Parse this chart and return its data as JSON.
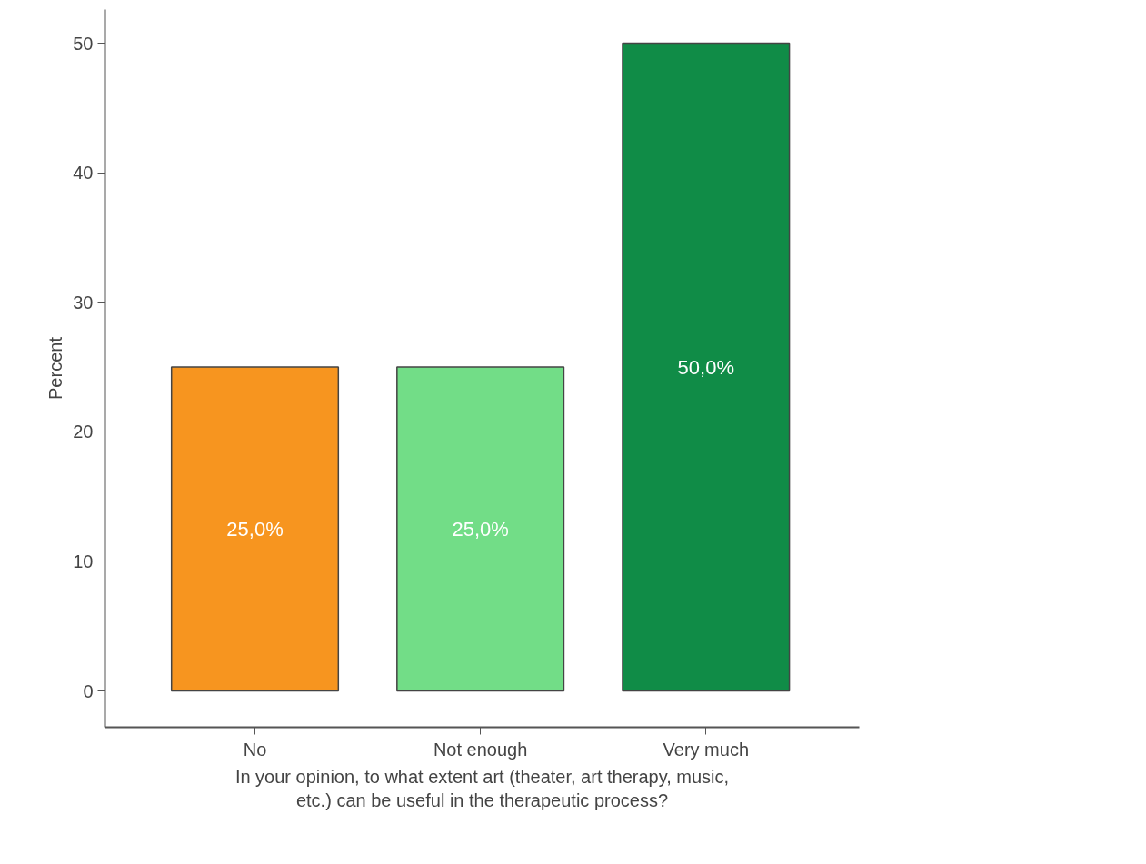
{
  "chart_data": {
    "type": "bar",
    "xlabel": "In your opinion, to what extent art (theater, art therapy, music, etc.) can be useful in the therapeutic process?",
    "ylabel": "Percent",
    "categories": [
      "No",
      "Not enough",
      "Very much"
    ],
    "values": [
      25,
      25,
      50
    ],
    "colors": [
      "#f7951f",
      "#72dd87",
      "#108c47"
    ],
    "value_labels": [
      "25,0%",
      "25,0%",
      "50,0%"
    ],
    "ylim": [
      -2.8,
      52.6
    ],
    "yticks": [
      0,
      10,
      20,
      30,
      40,
      50
    ],
    "grid": false
  }
}
